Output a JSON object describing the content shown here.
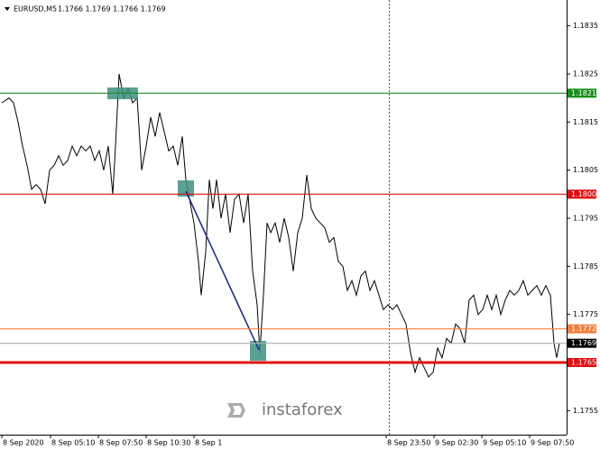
{
  "chart_data": {
    "type": "line",
    "title": "EURUSD,M5",
    "subtitle": "1.1766 1.1769 1.1766 1.1769",
    "watermark": "instaforex",
    "x": [
      2,
      10,
      15,
      20,
      25,
      30,
      35,
      40,
      45,
      50,
      55,
      60,
      65,
      70,
      75,
      80,
      85,
      90,
      95,
      100,
      105,
      110,
      115,
      120,
      125,
      128,
      132,
      137,
      142,
      147,
      152,
      157,
      162,
      167,
      172,
      177,
      182,
      187,
      192,
      197,
      202,
      206,
      210,
      215,
      220,
      223,
      228,
      232,
      236,
      240,
      245,
      250,
      255,
      260,
      265,
      270,
      275,
      280,
      285,
      288,
      292,
      296,
      300,
      305,
      310,
      315,
      320,
      325,
      330,
      335,
      340,
      345,
      350,
      355,
      360,
      365,
      370,
      375,
      380,
      385,
      390,
      395,
      400,
      405,
      410,
      415,
      420,
      425,
      430,
      435,
      440,
      445,
      450,
      455,
      460,
      465,
      470,
      475,
      480,
      485,
      490,
      495,
      500,
      505,
      510,
      515,
      520,
      525,
      530,
      535,
      540,
      545,
      550,
      555,
      560,
      565,
      570,
      575,
      580,
      585,
      590,
      595,
      600,
      605,
      610,
      614,
      617,
      620
    ],
    "series": [
      {
        "name": "EURUSD",
        "color": "#000000",
        "values": [
          1.1819,
          1.182,
          1.1819,
          1.1815,
          1.181,
          1.1806,
          1.1801,
          1.1802,
          1.1801,
          1.1798,
          1.1805,
          1.1806,
          1.1808,
          1.1806,
          1.1807,
          1.181,
          1.1808,
          1.181,
          1.1809,
          1.181,
          1.1807,
          1.1809,
          1.1805,
          1.181,
          1.18,
          1.181,
          1.1825,
          1.182,
          1.1822,
          1.1819,
          1.182,
          1.1805,
          1.181,
          1.1816,
          1.1812,
          1.1817,
          1.1813,
          1.1809,
          1.181,
          1.1806,
          1.1812,
          1.1803,
          1.1799,
          1.1794,
          1.1786,
          1.1779,
          1.1788,
          1.1803,
          1.1797,
          1.1803,
          1.1795,
          1.18,
          1.1792,
          1.1799,
          1.18,
          1.1794,
          1.18,
          1.1784,
          1.1777,
          1.1767,
          1.1779,
          1.1794,
          1.1792,
          1.1794,
          1.179,
          1.1795,
          1.1791,
          1.1784,
          1.1792,
          1.1795,
          1.1804,
          1.1797,
          1.1795,
          1.1794,
          1.1793,
          1.179,
          1.1791,
          1.1786,
          1.1785,
          1.178,
          1.1782,
          1.1779,
          1.1783,
          1.1784,
          1.178,
          1.1782,
          1.1779,
          1.1776,
          1.1777,
          1.1776,
          1.1777,
          1.1775,
          1.1773,
          1.1767,
          1.1763,
          1.1766,
          1.1764,
          1.1762,
          1.1763,
          1.1768,
          1.1766,
          1.177,
          1.1769,
          1.1773,
          1.1772,
          1.1769,
          1.1778,
          1.1779,
          1.1775,
          1.1776,
          1.1779,
          1.1776,
          1.1779,
          1.1775,
          1.1778,
          1.178,
          1.1779,
          1.178,
          1.1782,
          1.1779,
          1.178,
          1.1781,
          1.1779,
          1.1781,
          1.1779,
          1.1769,
          1.1766,
          1.1769
        ]
      }
    ],
    "xlim": [
      0,
      628
    ],
    "xticks": [
      {
        "value": 2,
        "label": "8 Sep 2020"
      },
      {
        "value": 56,
        "label": "8 Sep 05:10"
      },
      {
        "value": 109,
        "label": "8 Sep 07:50"
      },
      {
        "value": 162,
        "label": "8 Sep 10:30"
      },
      {
        "value": 215,
        "label": "8 Sep 1"
      },
      {
        "value": 428,
        "label": "8 Sep 23:50"
      },
      {
        "value": 481,
        "label": "9 Sep 02:30"
      },
      {
        "value": 534,
        "label": "9 Sep 05:10"
      },
      {
        "value": 587,
        "label": "9 Sep 07:50"
      }
    ],
    "ylim": [
      1.175,
      1.184
    ],
    "yticks": [
      1.1835,
      1.1825,
      1.1815,
      1.1805,
      1.1795,
      1.1785,
      1.1775,
      1.1755
    ],
    "levels": [
      {
        "value": 1.1821,
        "color": "#1a8f1a"
      },
      {
        "value": 1.18,
        "label": "1.1800",
        "color": "#e01010"
      },
      {
        "value": 1.1772,
        "color": "#f08040"
      },
      {
        "value": 1.1769,
        "color": "#b0b0b0"
      },
      {
        "value": 1.1765,
        "color": "#e01010"
      }
    ]
  }
}
